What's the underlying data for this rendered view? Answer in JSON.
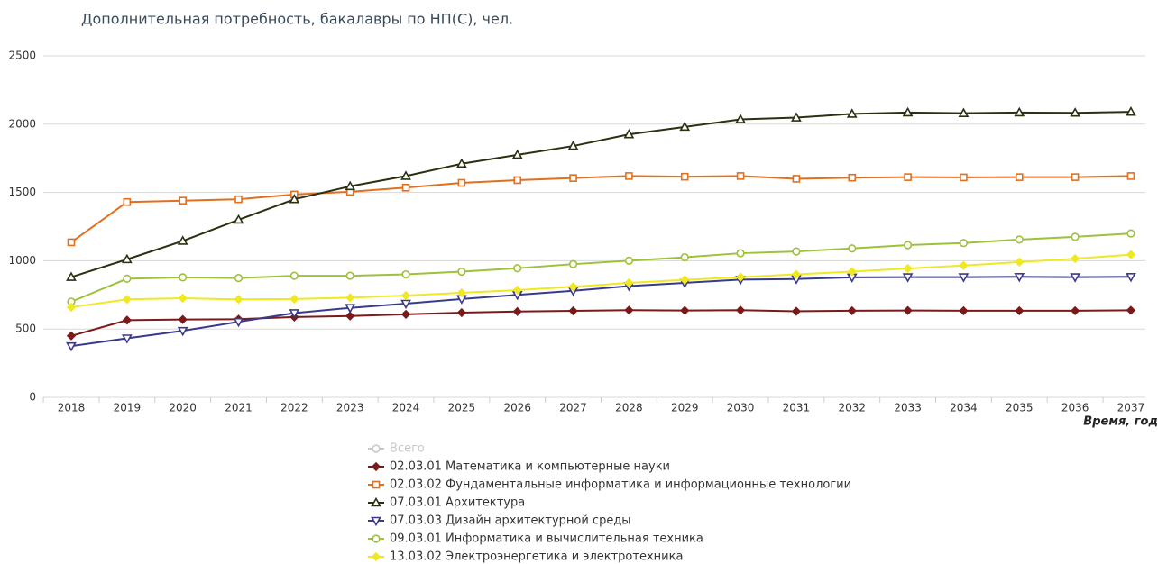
{
  "chart_data": {
    "type": "line",
    "title": "Дополнительная потребность, бакалавры по НП(С), чел.",
    "x_label": "Время, год",
    "categories": [
      "2018",
      "2019",
      "2020",
      "2021",
      "2022",
      "2023",
      "2024",
      "2025",
      "2026",
      "2027",
      "2028",
      "2029",
      "2030",
      "2031",
      "2032",
      "2033",
      "2034",
      "2035",
      "2036",
      "2037"
    ],
    "ylim": [
      0,
      2500
    ],
    "yticks": [
      0,
      500,
      1000,
      1500,
      2000,
      2500
    ],
    "grid": true,
    "legend": "bottom",
    "series": [
      {
        "name": "Всего",
        "color": "#c8c8c8",
        "marker": "circle",
        "visible": false,
        "values": [
          null,
          null,
          null,
          null,
          null,
          null,
          null,
          null,
          null,
          null,
          null,
          null,
          null,
          null,
          null,
          null,
          null,
          null,
          null,
          null
        ]
      },
      {
        "name": "02.03.01 Математика и компьютерные науки",
        "color": "#7b1a1a",
        "marker": "diamond",
        "values": [
          450,
          565,
          570,
          572,
          588,
          595,
          608,
          620,
          628,
          633,
          638,
          636,
          638,
          630,
          634,
          636,
          634,
          634,
          634,
          637
        ]
      },
      {
        "name": "02.03.02 Фундаментальные информатика и информационные технологии",
        "color": "#e07020",
        "marker": "square",
        "values": [
          1135,
          1430,
          1440,
          1450,
          1485,
          1505,
          1535,
          1570,
          1590,
          1605,
          1620,
          1615,
          1620,
          1600,
          1608,
          1612,
          1610,
          1612,
          1612,
          1620
        ]
      },
      {
        "name": "07.03.01 Архитектура",
        "color": "#2a3010",
        "marker": "triangle-up",
        "values": [
          880,
          1010,
          1145,
          1300,
          1450,
          1545,
          1620,
          1710,
          1775,
          1840,
          1925,
          1980,
          2035,
          2048,
          2075,
          2085,
          2080,
          2085,
          2083,
          2090
        ]
      },
      {
        "name": "07.03.03 Дизайн архитектурной среды",
        "color": "#3a3a8a",
        "marker": "triangle-down",
        "values": [
          375,
          432,
          487,
          553,
          617,
          655,
          686,
          720,
          750,
          780,
          815,
          838,
          862,
          866,
          878,
          880,
          880,
          882,
          880,
          882
        ]
      },
      {
        "name": "09.03.01 Информатика и вычислительная техника",
        "color": "#9dc13a",
        "marker": "circle",
        "values": [
          700,
          868,
          878,
          873,
          890,
          890,
          900,
          920,
          945,
          975,
          1000,
          1025,
          1055,
          1068,
          1090,
          1115,
          1130,
          1155,
          1175,
          1200
        ]
      },
      {
        "name": "13.03.02 Электроэнергетика и электротехника",
        "color": "#f0e820",
        "marker": "diamond",
        "values": [
          660,
          717,
          726,
          717,
          720,
          730,
          745,
          765,
          785,
          810,
          838,
          860,
          880,
          900,
          920,
          943,
          965,
          990,
          1015,
          1045
        ]
      }
    ]
  }
}
